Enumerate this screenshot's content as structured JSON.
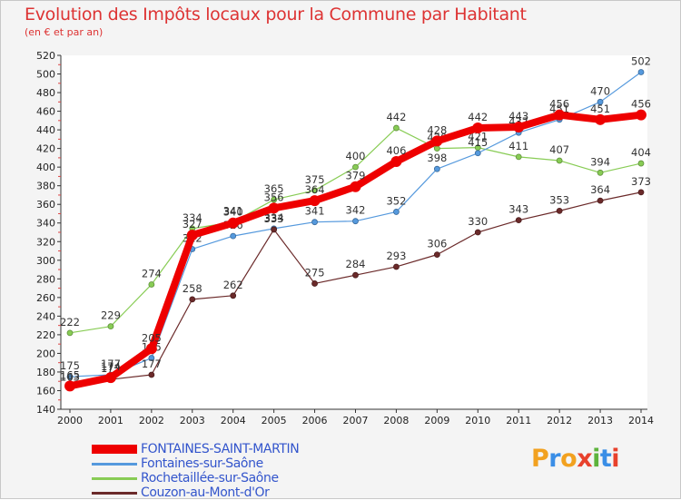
{
  "header": {
    "title": "Evolution des Impôts locaux pour la Commune par Habitant",
    "subtitle": "(en € et par an)"
  },
  "brand": {
    "letters": [
      "P",
      "r",
      "o",
      "x",
      "i",
      "t",
      "i"
    ],
    "colors": [
      "#f2a11f",
      "#3a8ee6",
      "#f2a11f",
      "#e8412c",
      "#5db33c",
      "#3a8ee6",
      "#e8412c"
    ]
  },
  "chart_data": {
    "type": "line",
    "title": "Evolution des Impôts locaux pour la Commune par Habitant",
    "subtitle": "(en € et par an)",
    "xlabel": "",
    "ylabel": "",
    "x": [
      2000,
      2001,
      2002,
      2003,
      2004,
      2005,
      2006,
      2007,
      2008,
      2009,
      2010,
      2011,
      2012,
      2013,
      2014
    ],
    "ylim": [
      140,
      520
    ],
    "yticks": [
      140,
      160,
      180,
      200,
      220,
      240,
      260,
      280,
      300,
      320,
      340,
      360,
      380,
      400,
      420,
      440,
      460,
      480,
      500,
      520
    ],
    "grid": false,
    "legend_position": "bottom-left",
    "series": [
      {
        "name": "Rochetaillée-sur-Saône",
        "color": "#88cc55",
        "values": [
          222,
          229,
          274,
          334,
          341,
          365,
          375,
          400,
          442,
          420,
          421,
          411,
          407,
          394,
          404
        ]
      },
      {
        "name": "Fontaines-sur-Saône",
        "color": "#5599dd",
        "values": [
          175,
          177,
          195,
          312,
          326,
          334,
          341,
          342,
          352,
          398,
          415,
          437,
          451,
          470,
          502
        ]
      },
      {
        "name": "Couzon-au-Mont-d'Or",
        "color": "#6b2a2a",
        "values": [
          163,
          172,
          177,
          258,
          262,
          333,
          275,
          284,
          293,
          306,
          330,
          343,
          353,
          364,
          373
        ]
      },
      {
        "name": "FONTAINES-SAINT-MARTIN",
        "color": "#ee0000",
        "values": [
          165,
          174,
          205,
          327,
          340,
          356,
          364,
          379,
          406,
          428,
          442,
          443,
          456,
          451,
          456
        ]
      }
    ]
  }
}
